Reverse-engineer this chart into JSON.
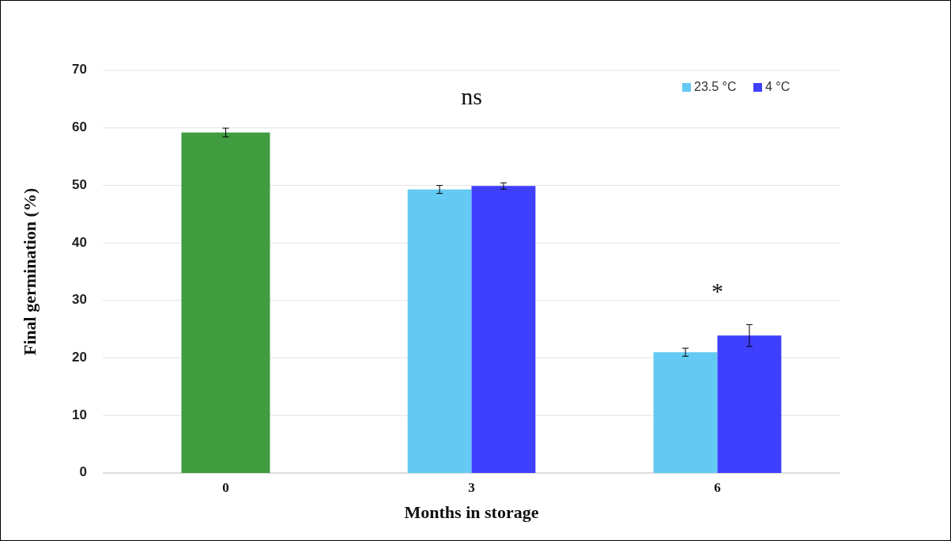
{
  "chart_data": {
    "type": "bar",
    "xlabel": "Months in storage",
    "ylabel": "Final germination (%)",
    "categories": [
      "0",
      "3",
      "6"
    ],
    "series": [
      {
        "color": "#3f9c3f",
        "values": [
          59.2,
          null,
          null
        ],
        "errors": [
          0.75,
          null,
          null
        ]
      },
      {
        "name": "23.5 °C",
        "color": "#63caf3",
        "values": [
          null,
          49.3,
          21.0
        ],
        "errors": [
          null,
          0.7,
          0.7
        ]
      },
      {
        "name": "4 °C",
        "color": "#3f3fff",
        "values": [
          null,
          49.9,
          23.9
        ],
        "errors": [
          null,
          0.55,
          1.9
        ]
      }
    ],
    "ylim": [
      0,
      70
    ],
    "yticks": [
      0,
      10,
      20,
      30,
      40,
      50,
      60,
      70
    ],
    "grid": "y",
    "legend": "top right",
    "annotations": [
      "ns",
      "*"
    ]
  }
}
